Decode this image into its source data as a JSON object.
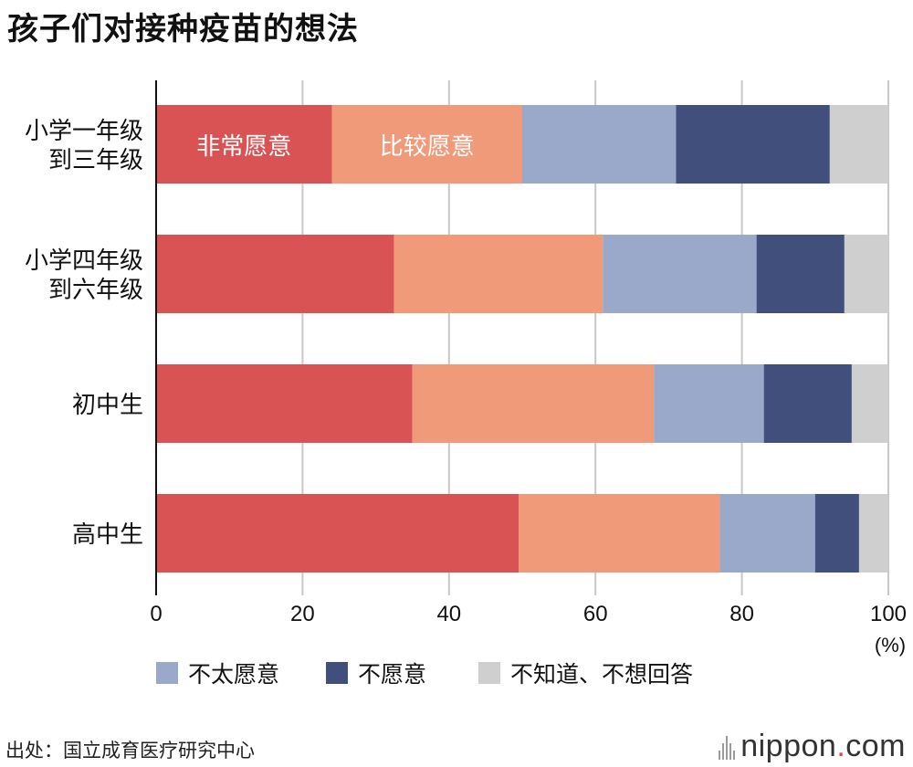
{
  "title": "孩子们对接种疫苗的想法",
  "source": "出处：国立成育医疗研究中心",
  "logo": {
    "brand": "nippon",
    "dot": ".",
    "tld": "com"
  },
  "chart_data": {
    "type": "bar",
    "orientation": "horizontal",
    "stacked": true,
    "categories": [
      "小学一年级\n到三年级",
      "小学四年级\n到六年级",
      "初中生",
      "高中生"
    ],
    "series": [
      {
        "name": "非常愿意",
        "color": "#d95355",
        "values": [
          24,
          32.5,
          35,
          49.5
        ]
      },
      {
        "name": "比较愿意",
        "color": "#f19a7a",
        "values": [
          26,
          28.5,
          33,
          27.5
        ]
      },
      {
        "name": "不太愿意",
        "color": "#9aa8ca",
        "values": [
          21,
          21,
          15,
          13
        ]
      },
      {
        "name": "不愿意",
        "color": "#404f7c",
        "values": [
          21,
          12,
          12,
          6
        ]
      },
      {
        "name": "不知道、不想回答",
        "color": "#cfcfcf",
        "values": [
          8,
          6,
          5,
          4
        ]
      }
    ],
    "inline_labels": [
      "非常愿意",
      "比较愿意"
    ],
    "xlim": [
      0,
      100
    ],
    "xticks": [
      0,
      20,
      40,
      60,
      80,
      100
    ],
    "xunit": "(%)",
    "legend": [
      "不太愿意",
      "不愿意",
      "不知道、不想回答"
    ],
    "grid": true
  }
}
